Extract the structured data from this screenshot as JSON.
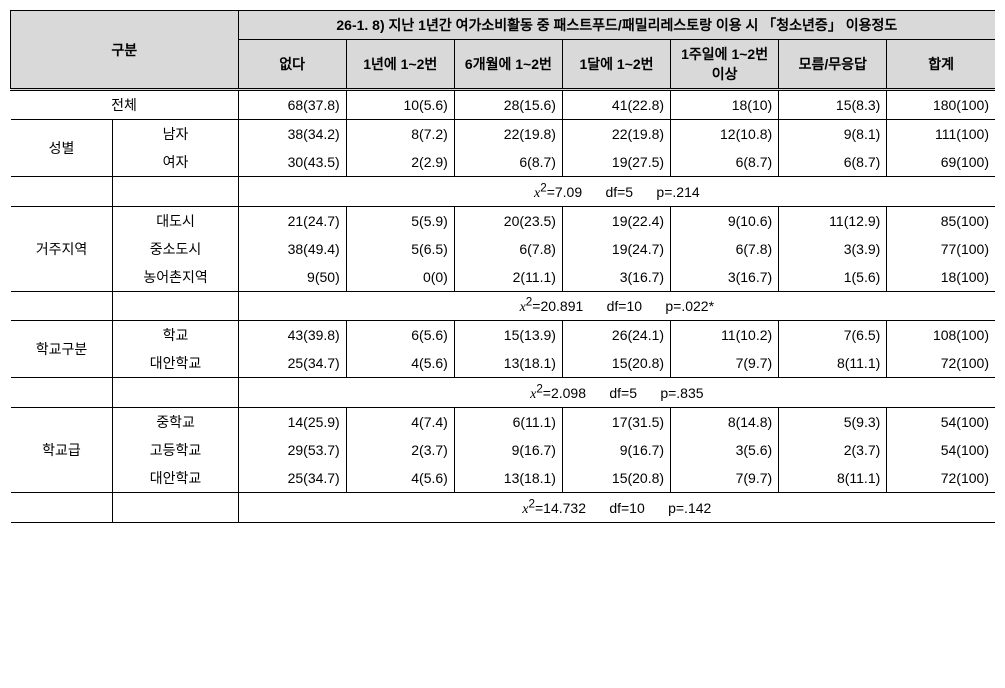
{
  "table": {
    "headers": {
      "gubun": "구분",
      "title": "26-1. 8) 지난 1년간 여가소비활동 중 패스트푸드/패밀리레스토랑 이용 시 「청소년증」 이용정도",
      "cols": [
        "없다",
        "1년에 1~2번",
        "6개월에 1~2번",
        "1달에 1~2번",
        "1주일에 1~2번이상",
        "모름/무응답",
        "합계"
      ]
    },
    "groups": [
      {
        "label": "전체",
        "rows": [
          {
            "sub": "",
            "cells": [
              "68(37.8)",
              "10(5.6)",
              "28(15.6)",
              "41(22.8)",
              "18(10)",
              "15(8.3)",
              "180(100)"
            ]
          }
        ],
        "stats": null
      },
      {
        "label": "성별",
        "rows": [
          {
            "sub": "남자",
            "cells": [
              "38(34.2)",
              "8(7.2)",
              "22(19.8)",
              "22(19.8)",
              "12(10.8)",
              "9(8.1)",
              "111(100)"
            ]
          },
          {
            "sub": "여자",
            "cells": [
              "30(43.5)",
              "2(2.9)",
              "6(8.7)",
              "19(27.5)",
              "6(8.7)",
              "6(8.7)",
              "69(100)"
            ]
          }
        ],
        "stats": {
          "chi2": "7.09",
          "df": "5",
          "p": ".214",
          "star": ""
        }
      },
      {
        "label": "거주지역",
        "rows": [
          {
            "sub": "대도시",
            "cells": [
              "21(24.7)",
              "5(5.9)",
              "20(23.5)",
              "19(22.4)",
              "9(10.6)",
              "11(12.9)",
              "85(100)"
            ]
          },
          {
            "sub": "중소도시",
            "cells": [
              "38(49.4)",
              "5(6.5)",
              "6(7.8)",
              "19(24.7)",
              "6(7.8)",
              "3(3.9)",
              "77(100)"
            ]
          },
          {
            "sub": "농어촌지역",
            "cells": [
              "9(50)",
              "0(0)",
              "2(11.1)",
              "3(16.7)",
              "3(16.7)",
              "1(5.6)",
              "18(100)"
            ]
          }
        ],
        "stats": {
          "chi2": "20.891",
          "df": "10",
          "p": ".022",
          "star": "*"
        }
      },
      {
        "label": "학교구분",
        "rows": [
          {
            "sub": "학교",
            "cells": [
              "43(39.8)",
              "6(5.6)",
              "15(13.9)",
              "26(24.1)",
              "11(10.2)",
              "7(6.5)",
              "108(100)"
            ]
          },
          {
            "sub": "대안학교",
            "cells": [
              "25(34.7)",
              "4(5.6)",
              "13(18.1)",
              "15(20.8)",
              "7(9.7)",
              "8(11.1)",
              "72(100)"
            ]
          }
        ],
        "stats": {
          "chi2": "2.098",
          "df": "5",
          "p": ".835",
          "star": ""
        }
      },
      {
        "label": "학교급",
        "rows": [
          {
            "sub": "중학교",
            "cells": [
              "14(25.9)",
              "4(7.4)",
              "6(11.1)",
              "17(31.5)",
              "8(14.8)",
              "5(9.3)",
              "54(100)"
            ]
          },
          {
            "sub": "고등학교",
            "cells": [
              "29(53.7)",
              "2(3.7)",
              "9(16.7)",
              "9(16.7)",
              "3(5.6)",
              "2(3.7)",
              "54(100)"
            ]
          },
          {
            "sub": "대안학교",
            "cells": [
              "25(34.7)",
              "4(5.6)",
              "13(18.1)",
              "15(20.8)",
              "7(9.7)",
              "8(11.1)",
              "72(100)"
            ]
          }
        ],
        "stats": {
          "chi2": "14.732",
          "df": "10",
          "p": ".142",
          "star": ""
        }
      }
    ],
    "stat_labels": {
      "x2": "x",
      "sup2": "2",
      "eq": "=",
      "df": "df=",
      "p": "p="
    }
  },
  "style": {
    "header_bg": "#d9d9d9",
    "border_color": "#000000",
    "font_size_pt": 14,
    "cell_text_align": "right",
    "label_text_align": "center"
  }
}
